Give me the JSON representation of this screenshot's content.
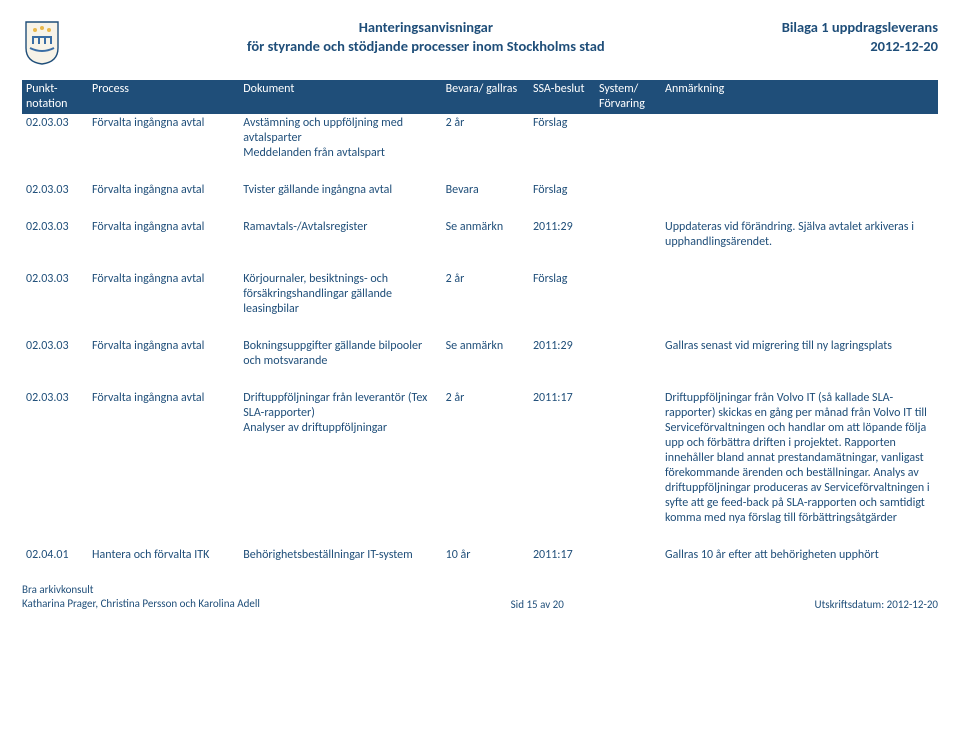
{
  "header": {
    "title_line1": "Hanteringsanvisningar",
    "title_line2": "för styrande och stödjande processer inom Stockholms stad",
    "right_line1": "Bilaga 1 uppdragsleverans",
    "right_line2": "2012-12-20"
  },
  "columns": [
    "Punkt-notation",
    "Process",
    "Dokument",
    "Bevara/ gallras",
    "SSA-beslut",
    "System/ Förvaring",
    "Anmärkning"
  ],
  "rows": [
    {
      "c1": "02.03.03",
      "c2": "Förvalta ingångna avtal",
      "c3": "Avstämning och uppföljning med avtalsparter\nMeddelanden från avtalspart",
      "c4": "2 år",
      "c5": "Förslag",
      "c6": "",
      "c7": ""
    },
    {
      "spacer": true
    },
    {
      "c1": "02.03.03",
      "c2": "Förvalta ingångna avtal",
      "c3": "Tvister gällande ingångna avtal",
      "c4": "Bevara",
      "c5": "Förslag",
      "c6": "",
      "c7": ""
    },
    {
      "spacer": true
    },
    {
      "c1": "02.03.03",
      "c2": "Förvalta ingångna avtal",
      "c3": "Ramavtals-/Avtalsregister",
      "c4": "Se anmärkn",
      "c5": "2011:29",
      "c6": "",
      "c7": "Uppdateras vid förändring. Själva avtalet arkiveras i upphandlingsärendet."
    },
    {
      "spacer": true
    },
    {
      "c1": "02.03.03",
      "c2": "Förvalta ingångna avtal",
      "c3": "Körjournaler, besiktnings- och försäkringshandlingar gällande leasingbilar",
      "c4": "2 år",
      "c5": "Förslag",
      "c6": "",
      "c7": ""
    },
    {
      "spacer": true
    },
    {
      "c1": "02.03.03",
      "c2": "Förvalta ingångna avtal",
      "c3": "Bokningsuppgifter gällande bilpooler och motsvarande",
      "c4": "Se anmärkn",
      "c5": "2011:29",
      "c6": "",
      "c7": "Gallras senast vid migrering till ny lagringsplats"
    },
    {
      "spacer": true
    },
    {
      "c1": "02.03.03",
      "c2": "Förvalta ingångna avtal",
      "c3": "Driftuppföljningar från leverantör (Tex SLA-rapporter)\nAnalyser av driftuppföljningar",
      "c4": "2 år",
      "c5": "2011:17",
      "c6": "",
      "c7": "Driftuppföljningar från Volvo IT (så kallade SLA-rapporter) skickas en gång per månad från Volvo IT till Serviceförvaltningen och handlar om att löpande följa upp och förbättra driften i projektet. Rapporten innehåller bland annat prestandamätningar, vanligast förekommande ärenden och beställningar. Analys av driftuppföljningar produceras av Serviceförvaltningen i syfte att ge feed-back på SLA-rapporten och samtidigt komma med nya förslag till förbättringsåtgärder"
    },
    {
      "spacer": true
    },
    {
      "c1": "02.04.01",
      "c2": "Hantera och förvalta ITK",
      "c3": "Behörighetsbeställningar IT-system",
      "c4": "10 år",
      "c5": "2011:17",
      "c6": "",
      "c7": "Gallras 10 år efter att behörigheten upphört"
    }
  ],
  "footer": {
    "left_line1": "Bra arkivkonsult",
    "left_line2": "Katharina Prager, Christina Persson och Karolina Adell",
    "center": "Sid 15 av 20",
    "right": "Utskriftsdatum: 2012-12-20"
  }
}
